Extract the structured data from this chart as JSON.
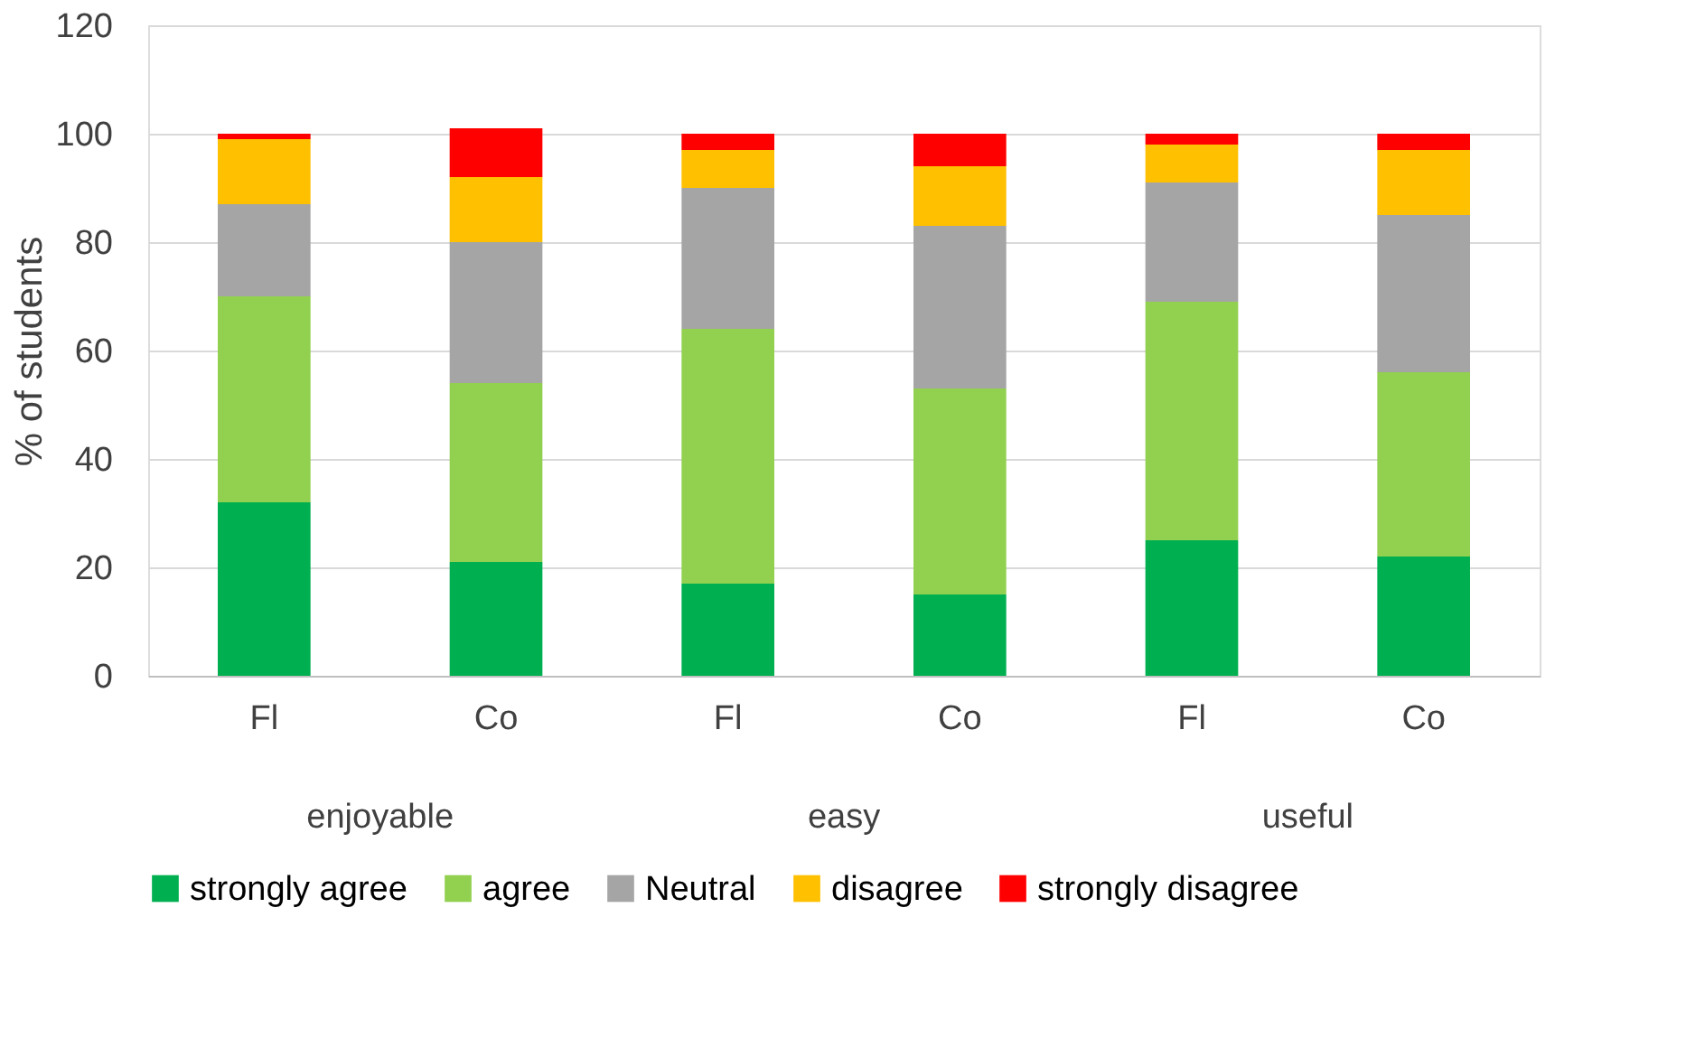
{
  "chart_data": {
    "type": "bar",
    "stacked": true,
    "ylabel": "% of students",
    "categories": [
      "Fl",
      "Co",
      "Fl",
      "Co",
      "Fl",
      "Co"
    ],
    "annotations": [
      "enjoyable",
      "easy",
      "useful"
    ],
    "series": [
      {
        "name": "strongly agree",
        "color": "#00b050",
        "values": [
          32,
          21,
          17,
          15,
          25,
          22
        ]
      },
      {
        "name": "agree",
        "color": "#92d050",
        "values": [
          38,
          33,
          47,
          38,
          44,
          34
        ]
      },
      {
        "name": "Neutral",
        "color": "#a5a5a5",
        "values": [
          17,
          26,
          26,
          30,
          22,
          29
        ]
      },
      {
        "name": "disagree",
        "color": "#ffc000",
        "values": [
          12,
          12,
          7,
          11,
          7,
          12
        ]
      },
      {
        "name": "strongly disagree",
        "color": "#ff0000",
        "values": [
          1,
          9,
          3,
          6,
          2,
          3
        ]
      }
    ],
    "ylim": [
      0,
      120
    ],
    "yticks": [
      0,
      20,
      40,
      60,
      80,
      100,
      120
    ],
    "grid": "y",
    "legend": "bottom"
  }
}
